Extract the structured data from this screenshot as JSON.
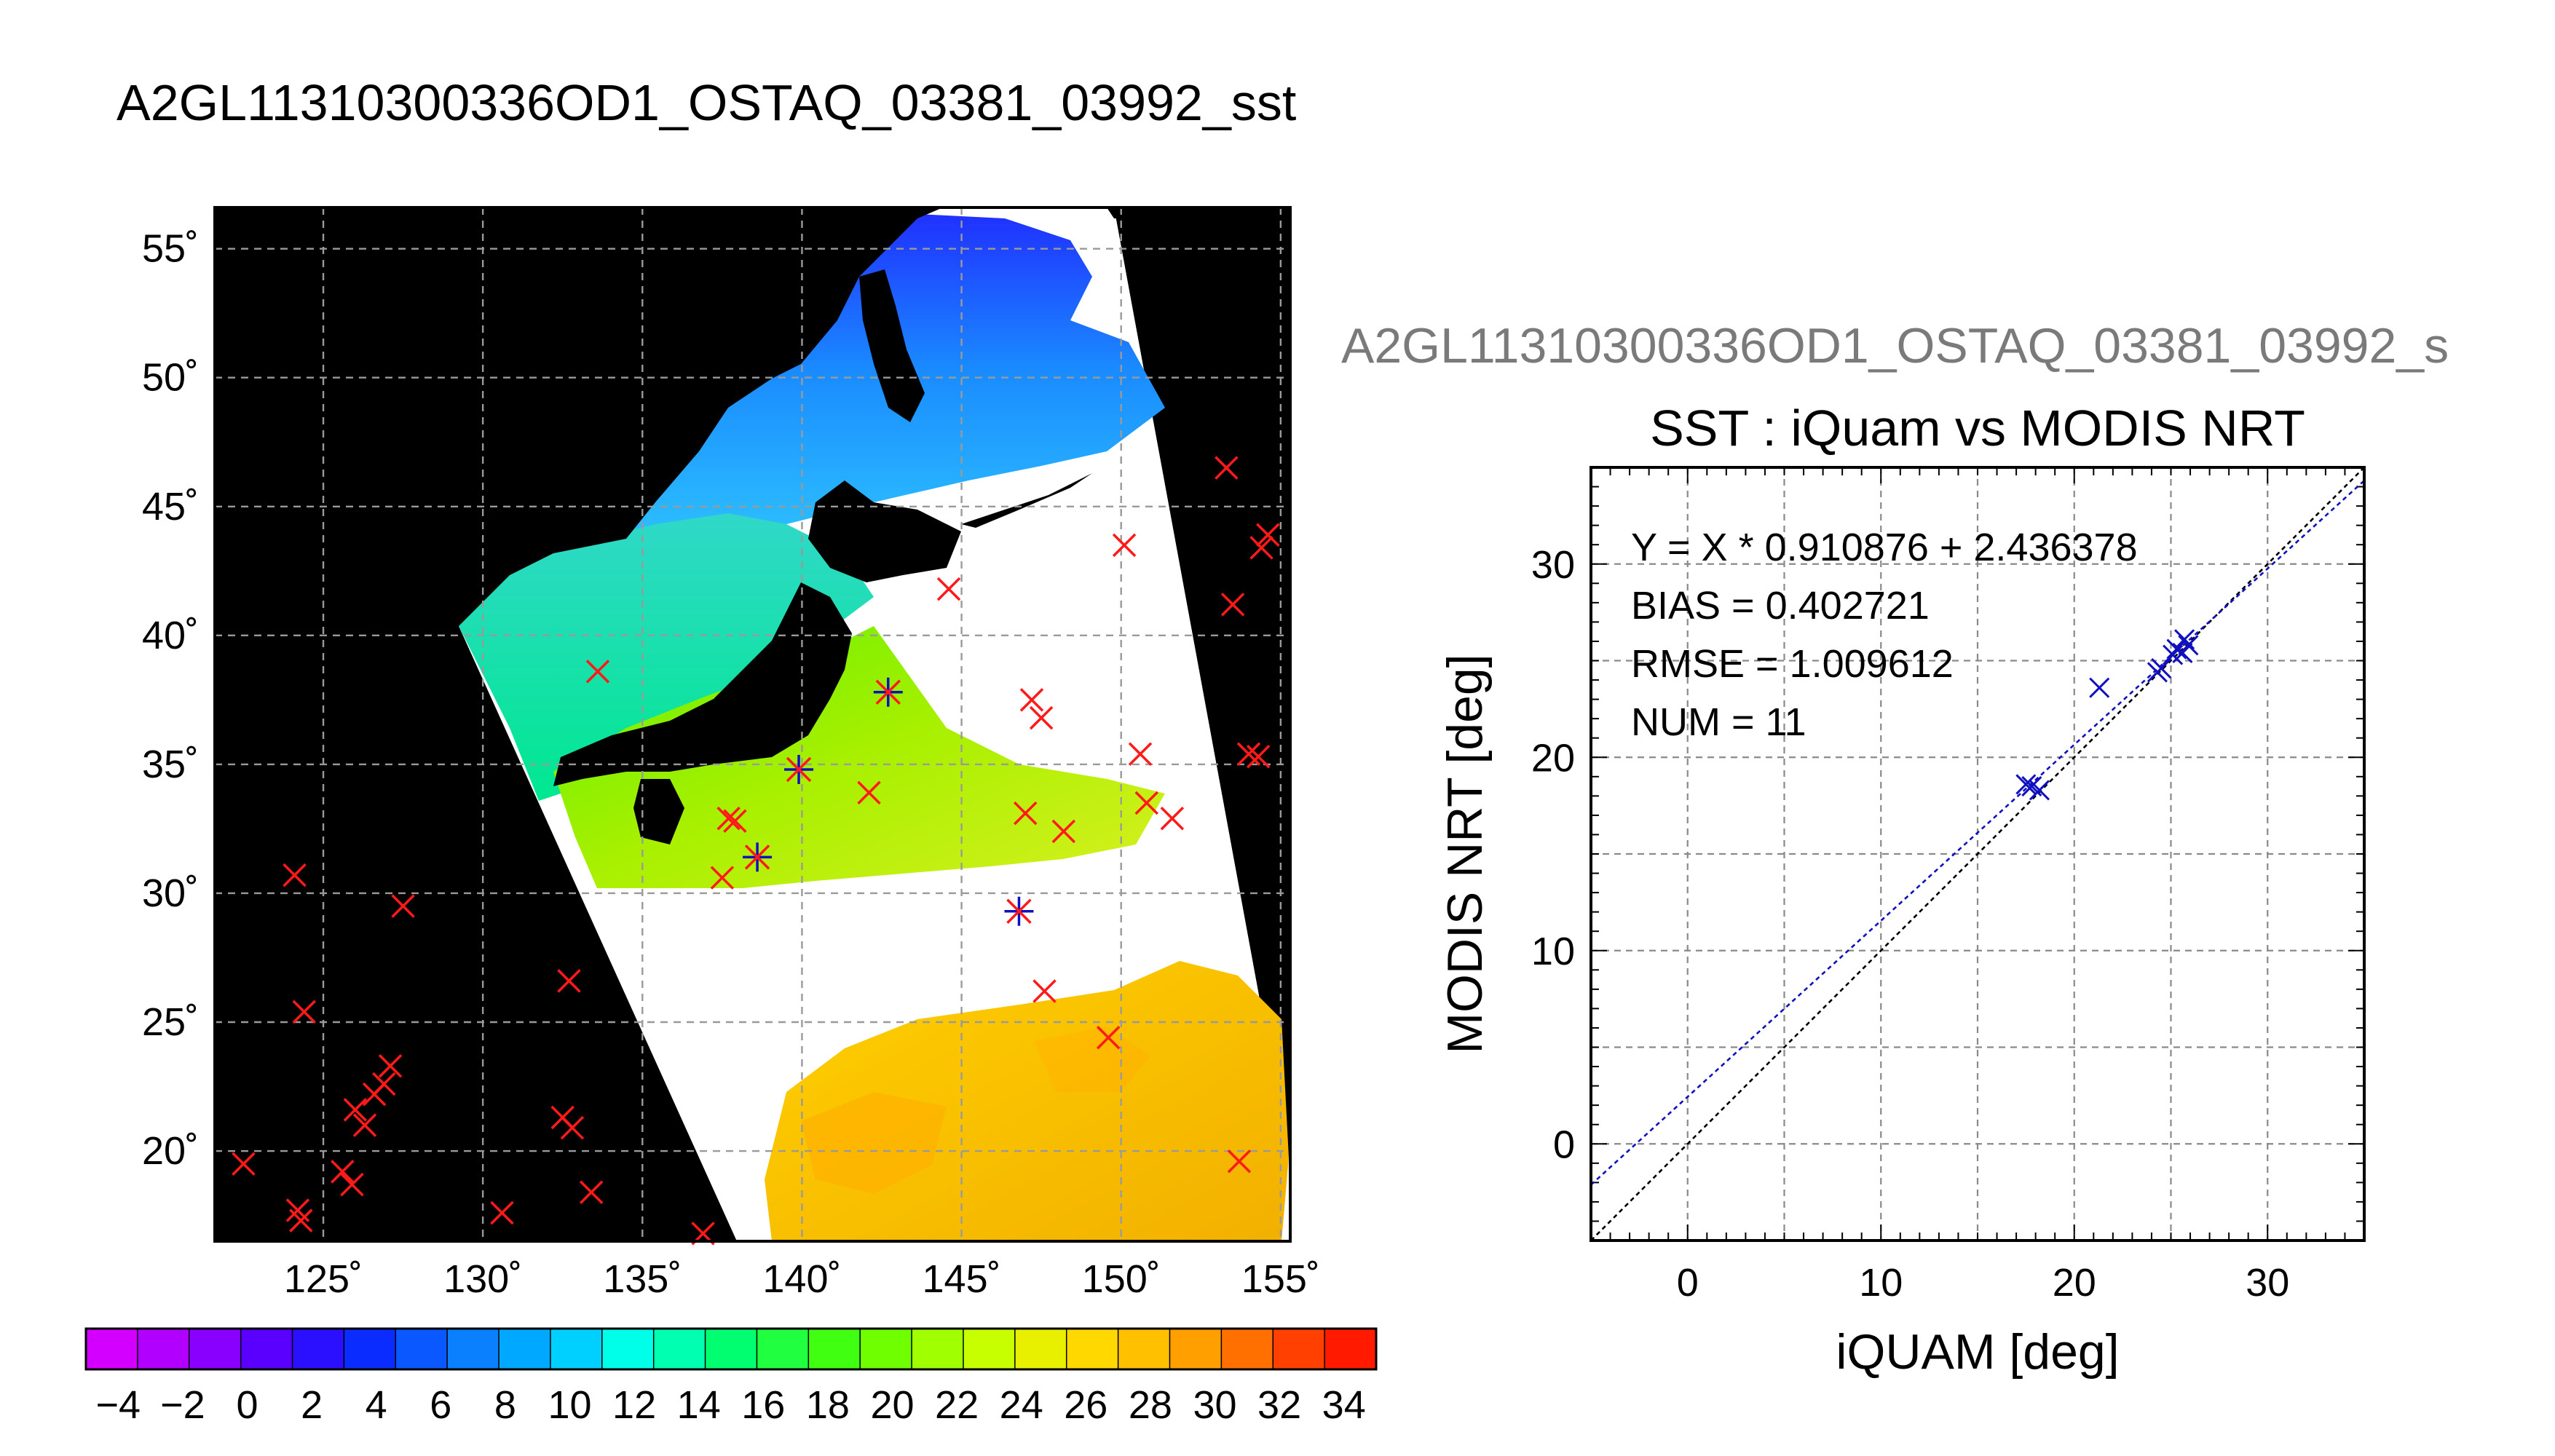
{
  "figure": {
    "title": "A2GL11310300336OD1_OSTAQ_03381_03992_sst"
  },
  "chart_data": [
    {
      "type": "map",
      "lon_ticks": [
        "125˚",
        "130˚",
        "135˚",
        "140˚",
        "145˚",
        "150˚",
        "155˚"
      ],
      "lat_ticks": [
        "55˚",
        "50˚",
        "45˚",
        "40˚",
        "35˚",
        "30˚",
        "25˚",
        "20˚"
      ],
      "lon_range": [
        121.6,
        155.3
      ],
      "lat_range": [
        16.5,
        56.6
      ],
      "grid": true,
      "colorbar": {
        "labels": [
          "−4",
          "−2",
          "0",
          "2",
          "4",
          "6",
          "8",
          "10",
          "12",
          "14",
          "16",
          "18",
          "20",
          "22",
          "24",
          "26",
          "28",
          "30",
          "32",
          "34"
        ],
        "range": [
          -5,
          35
        ],
        "colors": [
          "#d400ff",
          "#b200ff",
          "#8a00ff",
          "#5a00ff",
          "#2a10ff",
          "#0a2cff",
          "#0a58ff",
          "#0a80ff",
          "#00a8ff",
          "#00d0ff",
          "#00ffe8",
          "#00ffb0",
          "#00ff70",
          "#20ff40",
          "#40ff10",
          "#70ff00",
          "#a0ff00",
          "#c8ff00",
          "#e8f000",
          "#ffd800",
          "#ffc000",
          "#ffa000",
          "#ff7000",
          "#ff4000",
          "#ff1a00"
        ]
      },
      "colors": {
        "matched_marker": "#1010c0",
        "unmatched_marker": "#ff1a1a",
        "land": "#000000",
        "no_data": "#ffffff"
      },
      "unmatched_points": [
        [
          122.5,
          19.5
        ],
        [
          124.1,
          30.7
        ],
        [
          124.4,
          25.4
        ],
        [
          124.2,
          17.7
        ],
        [
          124.3,
          17.3
        ],
        [
          125.6,
          19.2
        ],
        [
          125.9,
          18.7
        ],
        [
          126.0,
          21.6
        ],
        [
          126.3,
          21.0
        ],
        [
          126.6,
          22.2
        ],
        [
          126.9,
          22.6
        ],
        [
          127.1,
          23.3
        ],
        [
          127.5,
          29.5
        ],
        [
          130.6,
          17.6
        ],
        [
          132.5,
          21.3
        ],
        [
          132.8,
          20.9
        ],
        [
          132.7,
          26.6
        ],
        [
          133.4,
          18.4
        ],
        [
          133.6,
          38.6
        ],
        [
          136.9,
          16.8
        ],
        [
          137.5,
          30.6
        ],
        [
          137.7,
          32.9
        ],
        [
          137.9,
          32.8
        ],
        [
          142.1,
          33.9
        ],
        [
          144.6,
          41.8
        ],
        [
          147.0,
          33.1
        ],
        [
          147.2,
          37.5
        ],
        [
          147.5,
          36.8
        ],
        [
          147.6,
          26.2
        ],
        [
          148.2,
          32.4
        ],
        [
          149.6,
          24.4
        ],
        [
          150.1,
          43.5
        ],
        [
          150.6,
          35.4
        ],
        [
          150.8,
          33.5
        ],
        [
          151.6,
          32.9
        ],
        [
          153.3,
          46.5
        ],
        [
          153.5,
          41.2
        ],
        [
          153.7,
          19.6
        ],
        [
          154.0,
          35.4
        ],
        [
          154.3,
          35.3
        ],
        [
          154.4,
          43.4
        ],
        [
          154.6,
          43.9
        ]
      ],
      "matched_points": [
        [
          138.6,
          31.4
        ],
        [
          139.9,
          34.8
        ],
        [
          142.7,
          37.8
        ],
        [
          146.8,
          29.3
        ]
      ]
    },
    {
      "type": "scatter",
      "subtitle": "A2GL11310300336OD1_OSTAQ_03381_03992_s",
      "title": "SST : iQuam vs MODIS NRT",
      "xlabel": "iQUAM [deg]",
      "ylabel": "MODIS NRT [deg]",
      "xlim": [
        -5,
        35
      ],
      "ylim": [
        -5,
        35
      ],
      "x_ticks": [
        "0",
        "10",
        "20",
        "30"
      ],
      "y_ticks": [
        "0",
        "10",
        "20",
        "30"
      ],
      "grid": true,
      "stats": {
        "fit": "Y = X * 0.910876 + 2.436378",
        "bias": "BIAS = 0.402721",
        "rmse": "RMSE = 1.009612",
        "num": "NUM = 11"
      },
      "fit_line": {
        "slope": 0.910876,
        "intercept": 2.436378,
        "color": "#1010c0"
      },
      "identity_line": {
        "color": "#000000"
      },
      "points": [
        [
          17.5,
          18.6
        ],
        [
          17.8,
          18.5
        ],
        [
          18.2,
          18.3
        ],
        [
          21.3,
          23.6
        ],
        [
          24.3,
          24.4
        ],
        [
          24.5,
          24.6
        ],
        [
          25.1,
          25.3
        ],
        [
          25.3,
          25.6
        ],
        [
          25.6,
          25.4
        ],
        [
          25.7,
          26.1
        ],
        [
          25.9,
          25.8
        ]
      ]
    }
  ]
}
